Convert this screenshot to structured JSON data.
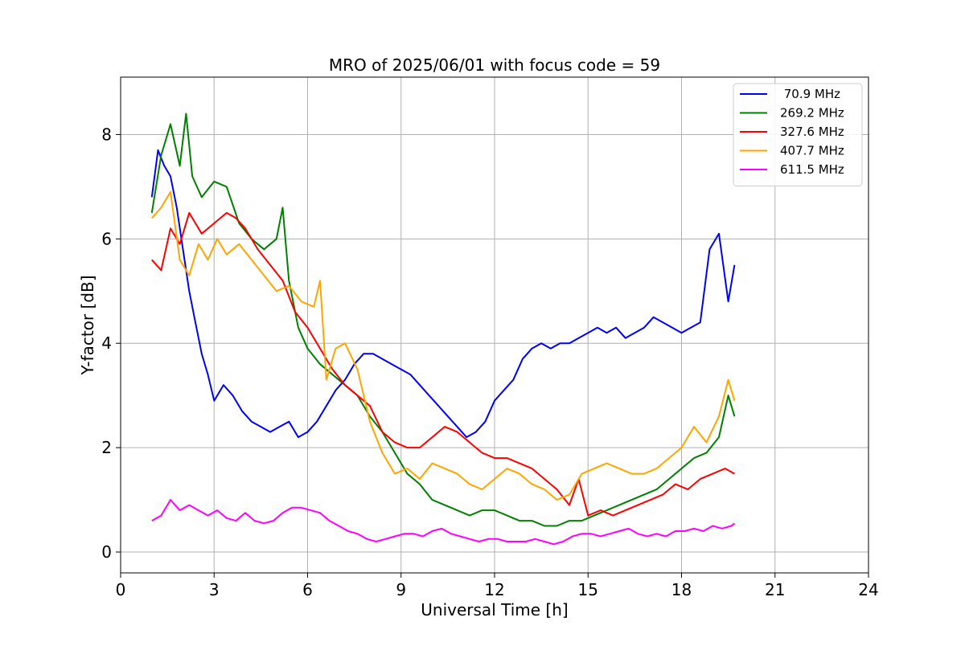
{
  "chart_data": {
    "type": "line",
    "title": "MRO of 2025/06/01 with focus code = 59",
    "xlabel": "Universal Time [h]",
    "ylabel": "Y-factor [dB]",
    "xlim": [
      0,
      24
    ],
    "ylim": [
      -0.4,
      9.1
    ],
    "xticks": [
      0,
      3,
      6,
      9,
      12,
      15,
      18,
      21,
      24
    ],
    "yticks": [
      0,
      2,
      4,
      6,
      8
    ],
    "grid": true,
    "legend_position": "top-right",
    "series": [
      {
        "name": " 70.9 MHz",
        "color": "#0000ff",
        "x": [
          1.0,
          1.2,
          1.4,
          1.6,
          1.8,
          2.0,
          2.2,
          2.4,
          2.6,
          2.8,
          3.0,
          3.3,
          3.6,
          3.9,
          4.2,
          4.5,
          4.8,
          5.1,
          5.4,
          5.7,
          6.0,
          6.3,
          6.6,
          6.9,
          7.2,
          7.5,
          7.8,
          8.1,
          8.4,
          8.7,
          9.0,
          9.3,
          9.6,
          9.9,
          10.2,
          10.5,
          10.8,
          11.1,
          11.4,
          11.7,
          12.0,
          12.3,
          12.6,
          12.9,
          13.2,
          13.5,
          13.8,
          14.1,
          14.4,
          14.7,
          15.0,
          15.3,
          15.6,
          15.9,
          16.2,
          16.5,
          16.8,
          17.1,
          17.4,
          17.7,
          18.0,
          18.3,
          18.6,
          18.9,
          19.2,
          19.5,
          19.7
        ],
        "y": [
          6.8,
          7.7,
          7.4,
          7.2,
          6.6,
          5.8,
          5.0,
          4.4,
          3.8,
          3.4,
          2.9,
          3.2,
          3.0,
          2.7,
          2.5,
          2.4,
          2.3,
          2.4,
          2.5,
          2.2,
          2.3,
          2.5,
          2.8,
          3.1,
          3.3,
          3.6,
          3.8,
          3.8,
          3.7,
          3.6,
          3.5,
          3.4,
          3.2,
          3.0,
          2.8,
          2.6,
          2.4,
          2.2,
          2.3,
          2.5,
          2.9,
          3.1,
          3.3,
          3.7,
          3.9,
          4.0,
          3.9,
          4.0,
          4.0,
          4.1,
          4.2,
          4.3,
          4.2,
          4.3,
          4.1,
          4.2,
          4.3,
          4.5,
          4.4,
          4.3,
          4.2,
          4.3,
          4.4,
          5.8,
          6.1,
          4.8,
          5.5
        ]
      },
      {
        "name": "269.2 MHz",
        "color": "#008000",
        "x": [
          1.0,
          1.3,
          1.6,
          1.9,
          2.1,
          2.3,
          2.6,
          3.0,
          3.4,
          3.8,
          4.2,
          4.6,
          5.0,
          5.2,
          5.4,
          5.7,
          6.0,
          6.4,
          6.8,
          7.2,
          7.6,
          8.0,
          8.4,
          8.8,
          9.2,
          9.6,
          10.0,
          10.4,
          10.8,
          11.2,
          11.6,
          12.0,
          12.4,
          12.8,
          13.2,
          13.6,
          14.0,
          14.4,
          14.8,
          15.2,
          15.6,
          16.0,
          16.4,
          16.8,
          17.2,
          17.6,
          18.0,
          18.4,
          18.8,
          19.2,
          19.5,
          19.7
        ],
        "y": [
          6.5,
          7.6,
          8.2,
          7.4,
          8.4,
          7.2,
          6.8,
          7.1,
          7.0,
          6.3,
          6.0,
          5.8,
          6.0,
          6.6,
          5.2,
          4.3,
          3.9,
          3.6,
          3.4,
          3.2,
          3.0,
          2.6,
          2.3,
          1.9,
          1.5,
          1.3,
          1.0,
          0.9,
          0.8,
          0.7,
          0.8,
          0.8,
          0.7,
          0.6,
          0.6,
          0.5,
          0.5,
          0.6,
          0.6,
          0.7,
          0.8,
          0.9,
          1.0,
          1.1,
          1.2,
          1.4,
          1.6,
          1.8,
          1.9,
          2.2,
          3.0,
          2.6
        ]
      },
      {
        "name": "327.6 MHz",
        "color": "#ff0000",
        "x": [
          1.0,
          1.3,
          1.6,
          1.9,
          2.2,
          2.6,
          3.0,
          3.4,
          3.7,
          4.0,
          4.4,
          4.8,
          5.2,
          5.6,
          6.0,
          6.4,
          6.8,
          7.2,
          7.6,
          8.0,
          8.4,
          8.8,
          9.2,
          9.6,
          10.0,
          10.4,
          10.8,
          11.2,
          11.6,
          12.0,
          12.4,
          12.8,
          13.2,
          13.6,
          14.0,
          14.4,
          14.7,
          15.0,
          15.4,
          15.8,
          16.2,
          16.6,
          17.0,
          17.4,
          17.8,
          18.2,
          18.6,
          19.0,
          19.4,
          19.7
        ],
        "y": [
          5.6,
          5.4,
          6.2,
          5.9,
          6.5,
          6.1,
          6.3,
          6.5,
          6.4,
          6.2,
          5.8,
          5.5,
          5.2,
          4.6,
          4.3,
          3.9,
          3.5,
          3.2,
          3.0,
          2.8,
          2.3,
          2.1,
          2.0,
          2.0,
          2.2,
          2.4,
          2.3,
          2.1,
          1.9,
          1.8,
          1.8,
          1.7,
          1.6,
          1.4,
          1.2,
          0.9,
          1.4,
          0.7,
          0.8,
          0.7,
          0.8,
          0.9,
          1.0,
          1.1,
          1.3,
          1.2,
          1.4,
          1.5,
          1.6,
          1.5
        ]
      },
      {
        "name": "407.7 MHz",
        "color": "#ffa500",
        "x": [
          1.0,
          1.3,
          1.6,
          1.9,
          2.2,
          2.5,
          2.8,
          3.1,
          3.4,
          3.8,
          4.2,
          4.6,
          5.0,
          5.4,
          5.8,
          6.2,
          6.4,
          6.6,
          6.9,
          7.2,
          7.6,
          8.0,
          8.4,
          8.8,
          9.2,
          9.6,
          10.0,
          10.4,
          10.8,
          11.2,
          11.6,
          12.0,
          12.4,
          12.8,
          13.2,
          13.6,
          14.0,
          14.4,
          14.8,
          15.2,
          15.6,
          16.0,
          16.4,
          16.8,
          17.2,
          17.6,
          18.0,
          18.4,
          18.8,
          19.2,
          19.5,
          19.7
        ],
        "y": [
          6.4,
          6.6,
          6.9,
          5.6,
          5.3,
          5.9,
          5.6,
          6.0,
          5.7,
          5.9,
          5.6,
          5.3,
          5.0,
          5.1,
          4.8,
          4.7,
          5.2,
          3.3,
          3.9,
          4.0,
          3.5,
          2.5,
          1.9,
          1.5,
          1.6,
          1.4,
          1.7,
          1.6,
          1.5,
          1.3,
          1.2,
          1.4,
          1.6,
          1.5,
          1.3,
          1.2,
          1.0,
          1.1,
          1.5,
          1.6,
          1.7,
          1.6,
          1.5,
          1.5,
          1.6,
          1.8,
          2.0,
          2.4,
          2.1,
          2.6,
          3.3,
          2.9
        ]
      },
      {
        "name": "611.5 MHz",
        "color": "#ff00ff",
        "x": [
          1.0,
          1.3,
          1.6,
          1.9,
          2.2,
          2.5,
          2.8,
          3.1,
          3.4,
          3.7,
          4.0,
          4.3,
          4.6,
          4.9,
          5.2,
          5.5,
          5.8,
          6.1,
          6.4,
          6.7,
          7.0,
          7.3,
          7.6,
          7.9,
          8.2,
          8.5,
          8.8,
          9.1,
          9.4,
          9.7,
          10.0,
          10.3,
          10.6,
          10.9,
          11.2,
          11.5,
          11.8,
          12.1,
          12.4,
          12.7,
          13.0,
          13.3,
          13.6,
          13.9,
          14.2,
          14.5,
          14.8,
          15.1,
          15.4,
          15.7,
          16.0,
          16.3,
          16.6,
          16.9,
          17.2,
          17.5,
          17.8,
          18.1,
          18.4,
          18.7,
          19.0,
          19.3,
          19.6,
          19.7
        ],
        "y": [
          0.6,
          0.7,
          1.0,
          0.8,
          0.9,
          0.8,
          0.7,
          0.8,
          0.65,
          0.6,
          0.75,
          0.6,
          0.55,
          0.6,
          0.75,
          0.85,
          0.85,
          0.8,
          0.75,
          0.6,
          0.5,
          0.4,
          0.35,
          0.25,
          0.2,
          0.25,
          0.3,
          0.35,
          0.35,
          0.3,
          0.4,
          0.45,
          0.35,
          0.3,
          0.25,
          0.2,
          0.25,
          0.25,
          0.2,
          0.2,
          0.2,
          0.25,
          0.2,
          0.15,
          0.2,
          0.3,
          0.35,
          0.35,
          0.3,
          0.35,
          0.4,
          0.45,
          0.35,
          0.3,
          0.35,
          0.3,
          0.4,
          0.4,
          0.45,
          0.4,
          0.5,
          0.45,
          0.5,
          0.55
        ]
      }
    ]
  }
}
